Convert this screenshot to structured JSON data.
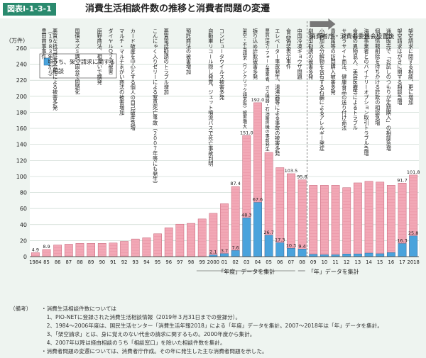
{
  "figure": {
    "label": "図表Ⅰ-1-3-1",
    "title": "消費生活相談件数の推移と消費者問題の変遷"
  },
  "agency_note": "消費者庁・消費者委員会設置後",
  "period_labels": {
    "fiscal": "「年度」データを集計",
    "calendar": "「年」データを集計"
  },
  "chart_data": {
    "type": "bar",
    "ylabel": "（万件）",
    "ylim": [
      0,
      260
    ],
    "yticks": [
      0,
      20,
      40,
      60,
      80,
      100,
      120,
      140,
      160,
      180,
      200,
      220,
      240,
      260
    ],
    "categories": [
      "1984",
      "85",
      "86",
      "87",
      "88",
      "89",
      "90",
      "91",
      "92",
      "93",
      "94",
      "95",
      "96",
      "97",
      "98",
      "99",
      "2000",
      "01",
      "02",
      "03",
      "04",
      "05",
      "06",
      "07",
      "08",
      "09",
      "10",
      "11",
      "12",
      "13",
      "14",
      "15",
      "16",
      "17",
      "2018"
    ],
    "series": [
      {
        "name": "相談件数",
        "color": "#f2a8b6",
        "values": [
          4.9,
          8.9,
          14.5,
          15.5,
          16.5,
          16.5,
          16.5,
          17.0,
          19.0,
          22.0,
          23.5,
          28.5,
          36.0,
          40.5,
          41.5,
          47.0,
          54.0,
          66.0,
          87.4,
          151.0,
          192.0,
          130.0,
          111.0,
          103.5,
          95.8,
          89.0,
          89.0,
          89.0,
          86.0,
          92.0,
          94.0,
          93.0,
          89.0,
          91.7,
          101.8
        ]
      },
      {
        "name": "うち、架空請求に関する相談",
        "color": "#4aa3dc",
        "values": [
          0,
          0,
          0,
          0,
          0,
          0,
          0,
          0,
          0,
          0,
          0,
          0,
          0,
          0,
          0,
          0,
          2.1,
          3.7,
          7.6,
          48.3,
          67.6,
          26.7,
          17.3,
          10.3,
          9.4,
          2.9,
          2.3,
          2.3,
          3.3,
          3.4,
          4.4,
          3.6,
          5.0,
          16.3,
          25.8
        ]
      }
    ],
    "value_labels": [
      {
        "i": 0,
        "text": "4.9",
        "series": 0
      },
      {
        "i": 1,
        "text": "8.9",
        "series": 0
      },
      {
        "i": 16,
        "text": "2.1",
        "series": 1
      },
      {
        "i": 17,
        "text": "3.7",
        "series": 1
      },
      {
        "i": 18,
        "text": "7.6",
        "series": 1
      },
      {
        "i": 18,
        "text": "87.4",
        "series": 0
      },
      {
        "i": 19,
        "text": "151.0",
        "series": 0
      },
      {
        "i": 19,
        "text": "48.3",
        "series": 1
      },
      {
        "i": 20,
        "text": "192.0",
        "series": 0
      },
      {
        "i": 20,
        "text": "67.6",
        "series": 1
      },
      {
        "i": 21,
        "text": "26.7",
        "series": 1
      },
      {
        "i": 22,
        "text": "17.3",
        "series": 1
      },
      {
        "i": 23,
        "text": "103.5",
        "series": 0
      },
      {
        "i": 23,
        "text": "10.3",
        "series": 1
      },
      {
        "i": 24,
        "text": "95.8",
        "series": 0
      },
      {
        "i": 24,
        "text": "9.4",
        "series": 1
      },
      {
        "i": 33,
        "text": "91.7",
        "series": 0
      },
      {
        "i": 33,
        "text": "16.3",
        "series": 1
      },
      {
        "i": 34,
        "text": "101.8",
        "series": 0
      },
      {
        "i": 34,
        "text": "25.8",
        "series": 1
      }
    ],
    "legend": "top-left",
    "grid": true
  },
  "annotations": [
    {
      "i": 1,
      "lines": [
        "豊田商事事件",
        "（１９８３年頃から）"
      ]
    },
    {
      "i": 2,
      "lines": [
        "悪質な抵当証券会社による被害多発"
      ]
    },
    {
      "i": 4,
      "lines": [
        "国債ネズミ講、国会で問題化"
      ]
    },
    {
      "i": 6,
      "lines": [
        "原野商法、相次いで摘発"
      ]
    },
    {
      "i": 7,
      "lines": [
        "ダイヤルＱ２の被害"
      ]
    },
    {
      "i": 8,
      "lines": [
        "マルチ・マルチまがい商法の被害増加"
      ]
    },
    {
      "i": 9,
      "lines": [
        "カード破産を中心とする個人の自己破産急増"
      ]
    },
    {
      "i": 11,
      "lines": [
        "こんにゃく入りゼリーによる窒息死亡事故（２００７年等にも発生）"
      ]
    },
    {
      "i": 12,
      "lines": [
        "悪質電話勧誘のトラブル増加"
      ]
    },
    {
      "i": 14,
      "lines": [
        "預託商法の被害増加"
      ]
    },
    {
      "i": 16,
      "lines": [
        "自動車リコール隠し発覚、ジェット噴流バスで死亡事故判明"
      ]
    },
    {
      "i": 17,
      "lines": [
        "コンピュータウイルス被害多発"
      ]
    },
    {
      "i": 19,
      "lines": [
        "架空・不当請求（ワンクリック請求等）被害増大"
      ]
    },
    {
      "i": 20,
      "lines": [
        "振り込め詐欺被害多発"
      ]
    },
    {
      "i": 21,
      "lines": [
        "悪質住宅リフォーム事業者、ガス機器・石油暖房機の事故発生"
      ]
    },
    {
      "i": 22,
      "lines": [
        "エレベーター事故発生、湯沸器等による事故の被害多発"
      ]
    },
    {
      "i": 23,
      "lines": [
        "食品偽装表示事件"
      ]
    },
    {
      "i": 24,
      "lines": [
        "中国冷凍ギョウザ問題"
      ]
    },
    {
      "i": 25,
      "lines": [
        "劇場型勧誘の被害多発"
      ]
    },
    {
      "i": 26,
      "lines": [
        "小麦加水分解物を含有する石鹸によるアレルギー発症"
      ]
    },
    {
      "i": 27,
      "lines": [
        "貴金属等の訪問購入被害多発"
      ]
    },
    {
      "i": 28,
      "lines": [
        "サクラサイト商法、健康食品の送り付け商法"
      ]
    },
    {
      "i": 29,
      "lines": [
        "食品の異物混入、美容医療等によるトラブル"
      ]
    },
    {
      "i": 30,
      "lines": [
        "海外事業者とのバイナリーオプション取引トラブル急増"
      ]
    },
    {
      "i": 31,
      "lines": [
        "個人情報削除を持ちかける詐欺の相談急増"
      ]
    },
    {
      "i": 32,
      "lines": [
        "通信販売で「お試しのつもりが定期購入」の相談急増"
      ]
    },
    {
      "i": 33,
      "lines": [
        "架空請求はがきに関する相談急増"
      ]
    },
    {
      "i": 34,
      "lines": [
        "架空請求に関する相談、更に増加"
      ]
    }
  ],
  "notes": {
    "label": "（備考）",
    "lines": [
      "・消費生活相談件数については",
      "　1、PIO-NETに登録された消費生活相談情報（2019年３月31日までの登録分）。",
      "　2、1984～2006年度は、国民生活センター「消費生活年報2018」による「年度」データを集計。2007～2018年は「年」データを集計。",
      "　3、「架空請求」とは、身に覚えのない代金の請求に関するもの。2000年度から集計。",
      "　4、2007年以降は経由相談のうち「相談窓口」を除いた相談件数を集計。",
      "・消費者問題の変遷については、消費者庁作成。その年に発生した主な消費者問題を示した。"
    ]
  }
}
